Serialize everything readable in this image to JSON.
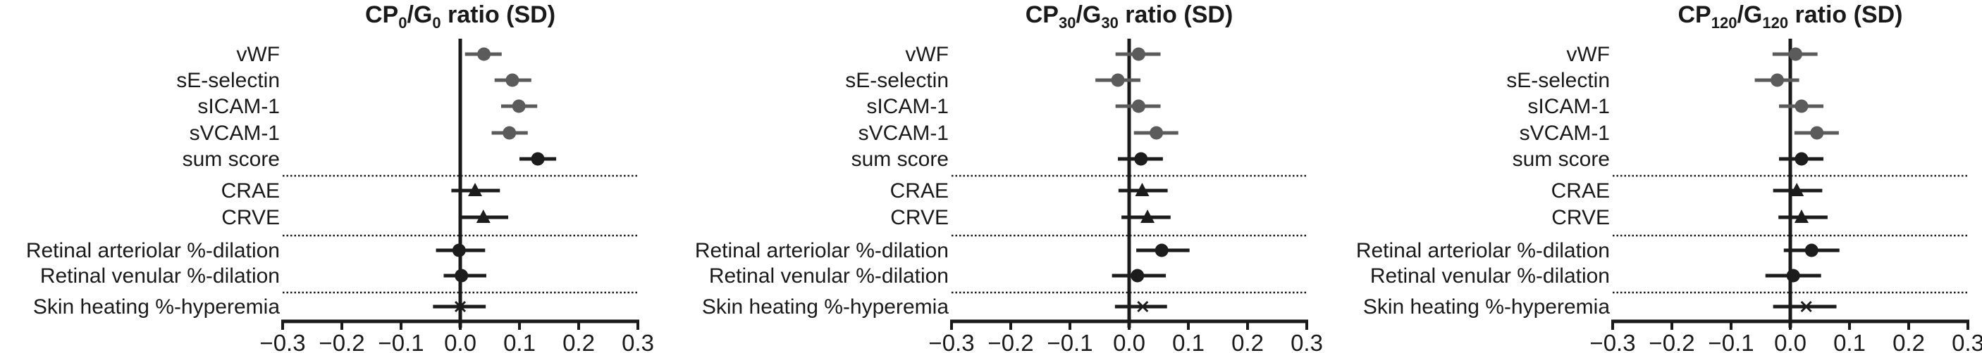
{
  "chart_data": [
    {
      "type": "forest",
      "title": {
        "prefix": "CP",
        "sub1": "0",
        "mid": "/G",
        "sub2": "0",
        "suffix": " ratio (SD)"
      },
      "xlabel": "",
      "xlim": [
        -0.3,
        0.3
      ],
      "xticks": [
        -0.3,
        -0.2,
        -0.1,
        0.0,
        0.1,
        0.2,
        0.3
      ],
      "xtick_labels": [
        "−0.3",
        "−0.2",
        "−0.1",
        "0.0",
        "0.1",
        "0.2",
        "0.3"
      ],
      "rows": [
        {
          "label": "vWF",
          "estimate": 0.04,
          "ci": [
            0.008,
            0.07
          ],
          "marker": "circle",
          "color": "#5b5b5b"
        },
        {
          "label": "sE-selectin",
          "estimate": 0.088,
          "ci": [
            0.058,
            0.12
          ],
          "marker": "circle",
          "color": "#5b5b5b"
        },
        {
          "label": "sICAM-1",
          "estimate": 0.099,
          "ci": [
            0.069,
            0.13
          ],
          "marker": "circle",
          "color": "#5b5b5b"
        },
        {
          "label": "sVCAM-1",
          "estimate": 0.083,
          "ci": [
            0.053,
            0.114
          ],
          "marker": "circle",
          "color": "#5b5b5b"
        },
        {
          "label": "sum score",
          "estimate": 0.131,
          "ci": [
            0.1,
            0.162
          ],
          "marker": "circle",
          "color": "#1c1c1c"
        },
        {
          "label": "CRAE",
          "estimate": 0.025,
          "ci": [
            -0.015,
            0.067
          ],
          "marker": "triangle",
          "color": "#1c1c1c"
        },
        {
          "label": "CRVE",
          "estimate": 0.039,
          "ci": [
            0.0,
            0.081
          ],
          "marker": "triangle",
          "color": "#1c1c1c"
        },
        {
          "label": "Retinal arteriolar %-dilation",
          "estimate": -0.002,
          "ci": [
            -0.041,
            0.042
          ],
          "marker": "circle",
          "color": "#1c1c1c"
        },
        {
          "label": "Retinal venular %-dilation",
          "estimate": 0.002,
          "ci": [
            -0.028,
            0.044
          ],
          "marker": "circle",
          "color": "#1c1c1c"
        },
        {
          "label": "Skin heating %-hyperemia",
          "estimate": 0.0,
          "ci": [
            -0.046,
            0.043
          ],
          "marker": "cross",
          "color": "#1c1c1c"
        }
      ],
      "separators_after": [
        "sum score",
        "CRVE",
        "Retinal venular %-dilation"
      ]
    },
    {
      "type": "forest",
      "title": {
        "prefix": "CP",
        "sub1": "30",
        "mid": "/G",
        "sub2": "30",
        "suffix": " ratio (SD)"
      },
      "xlabel": "",
      "xlim": [
        -0.3,
        0.3
      ],
      "xticks": [
        -0.3,
        -0.2,
        -0.1,
        0.0,
        0.1,
        0.2,
        0.3
      ],
      "xtick_labels": [
        "−0.3",
        "−0.2",
        "−0.1",
        "0.0",
        "0.1",
        "0.2",
        "0.3"
      ],
      "rows": [
        {
          "label": "vWF",
          "estimate": 0.016,
          "ci": [
            -0.023,
            0.053
          ],
          "marker": "circle",
          "color": "#5b5b5b"
        },
        {
          "label": "sE-selectin",
          "estimate": -0.019,
          "ci": [
            -0.057,
            0.019
          ],
          "marker": "circle",
          "color": "#5b5b5b"
        },
        {
          "label": "sICAM-1",
          "estimate": 0.016,
          "ci": [
            -0.023,
            0.053
          ],
          "marker": "circle",
          "color": "#5b5b5b"
        },
        {
          "label": "sVCAM-1",
          "estimate": 0.046,
          "ci": [
            0.008,
            0.083
          ],
          "marker": "circle",
          "color": "#5b5b5b"
        },
        {
          "label": "sum score",
          "estimate": 0.02,
          "ci": [
            -0.019,
            0.057
          ],
          "marker": "circle",
          "color": "#1c1c1c"
        },
        {
          "label": "CRAE",
          "estimate": 0.022,
          "ci": [
            -0.018,
            0.065
          ],
          "marker": "triangle",
          "color": "#1c1c1c"
        },
        {
          "label": "CRVE",
          "estimate": 0.031,
          "ci": [
            -0.013,
            0.07
          ],
          "marker": "triangle",
          "color": "#1c1c1c"
        },
        {
          "label": "Retinal arteriolar %-dilation",
          "estimate": 0.055,
          "ci": [
            0.012,
            0.102
          ],
          "marker": "circle",
          "color": "#1c1c1c"
        },
        {
          "label": "Retinal venular %-dilation",
          "estimate": 0.014,
          "ci": [
            -0.029,
            0.062
          ],
          "marker": "circle",
          "color": "#1c1c1c"
        },
        {
          "label": "Skin heating %-hyperemia",
          "estimate": 0.023,
          "ci": [
            -0.024,
            0.064
          ],
          "marker": "cross",
          "color": "#1c1c1c"
        }
      ],
      "separators_after": [
        "sum score",
        "CRVE",
        "Retinal venular %-dilation"
      ]
    },
    {
      "type": "forest",
      "title": {
        "prefix": "CP",
        "sub1": "120",
        "mid": "/G",
        "sub2": "120",
        "suffix": " ratio (SD)"
      },
      "xlabel": "",
      "xlim": [
        -0.3,
        0.3
      ],
      "xticks": [
        -0.3,
        -0.2,
        -0.1,
        0.0,
        0.1,
        0.2,
        0.3
      ],
      "xtick_labels": [
        "−0.3",
        "−0.2",
        "−0.1",
        "0.0",
        "0.1",
        "0.2",
        "0.3"
      ],
      "rows": [
        {
          "label": "vWF",
          "estimate": 0.009,
          "ci": [
            -0.03,
            0.046
          ],
          "marker": "circle",
          "color": "#5b5b5b"
        },
        {
          "label": "sE-selectin",
          "estimate": -0.022,
          "ci": [
            -0.06,
            0.015
          ],
          "marker": "circle",
          "color": "#5b5b5b"
        },
        {
          "label": "sICAM-1",
          "estimate": 0.019,
          "ci": [
            -0.019,
            0.056
          ],
          "marker": "circle",
          "color": "#5b5b5b"
        },
        {
          "label": "sVCAM-1",
          "estimate": 0.045,
          "ci": [
            0.007,
            0.082
          ],
          "marker": "circle",
          "color": "#5b5b5b"
        },
        {
          "label": "sum score",
          "estimate": 0.019,
          "ci": [
            -0.019,
            0.056
          ],
          "marker": "circle",
          "color": "#1c1c1c"
        },
        {
          "label": "CRAE",
          "estimate": 0.011,
          "ci": [
            -0.029,
            0.054
          ],
          "marker": "triangle",
          "color": "#1c1c1c"
        },
        {
          "label": "CRVE",
          "estimate": 0.019,
          "ci": [
            -0.02,
            0.063
          ],
          "marker": "triangle",
          "color": "#1c1c1c"
        },
        {
          "label": "Retinal arteriolar %-dilation",
          "estimate": 0.036,
          "ci": [
            -0.011,
            0.083
          ],
          "marker": "circle",
          "color": "#1c1c1c"
        },
        {
          "label": "Retinal venular %-dilation",
          "estimate": 0.005,
          "ci": [
            -0.042,
            0.052
          ],
          "marker": "circle",
          "color": "#1c1c1c"
        },
        {
          "label": "Skin heating %-hyperemia",
          "estimate": 0.027,
          "ci": [
            -0.029,
            0.078
          ],
          "marker": "cross",
          "color": "#1c1c1c"
        }
      ],
      "separators_after": [
        "sum score",
        "CRVE",
        "Retinal venular %-dilation"
      ]
    }
  ]
}
